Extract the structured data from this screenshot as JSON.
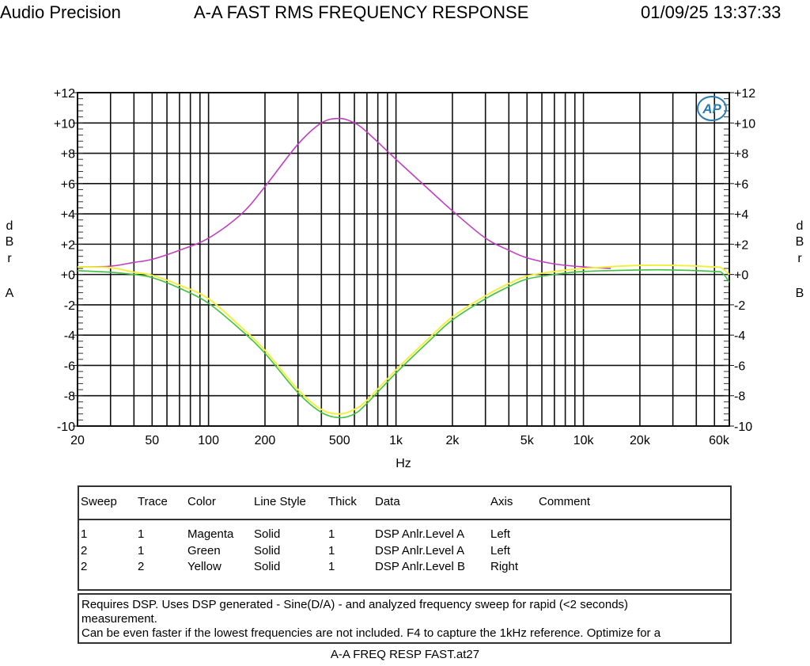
{
  "header": {
    "left": "Audio Precision",
    "title": "A-A FAST RMS FREQUENCY RESPONSE",
    "datetime": "01/09/25 13:37:33"
  },
  "chart_data": {
    "type": "line",
    "title": "A-A FAST RMS FREQUENCY RESPONSE",
    "xlabel": "Hz",
    "xscale": "log",
    "xlim": [
      20,
      60000
    ],
    "xticks": [
      {
        "v": 20,
        "label": "20"
      },
      {
        "v": 50,
        "label": "50"
      },
      {
        "v": 100,
        "label": "100"
      },
      {
        "v": 200,
        "label": "200"
      },
      {
        "v": 500,
        "label": "500"
      },
      {
        "v": 1000,
        "label": "1k"
      },
      {
        "v": 2000,
        "label": "2k"
      },
      {
        "v": 5000,
        "label": "5k"
      },
      {
        "v": 10000,
        "label": "10k"
      },
      {
        "v": 20000,
        "label": "20k"
      },
      {
        "v": 60000,
        "label": "60k"
      }
    ],
    "ylabel_left": [
      "d",
      "B",
      "r",
      "A"
    ],
    "ylabel_right": [
      "d",
      "B",
      "r",
      "B"
    ],
    "ylim": [
      -10,
      12
    ],
    "yticks": [
      {
        "v": 12,
        "label": "+12"
      },
      {
        "v": 10,
        "label": "+10"
      },
      {
        "v": 8,
        "label": "+8"
      },
      {
        "v": 6,
        "label": "+6"
      },
      {
        "v": 4,
        "label": "+4"
      },
      {
        "v": 2,
        "label": "+2"
      },
      {
        "v": 0,
        "label": "+0"
      },
      {
        "v": -2,
        "label": "-2"
      },
      {
        "v": -4,
        "label": "-4"
      },
      {
        "v": -6,
        "label": "-6"
      },
      {
        "v": -8,
        "label": "-8"
      },
      {
        "v": -10,
        "label": "-10"
      }
    ],
    "grid": true,
    "logo": "AP",
    "series": [
      {
        "name": "Sweep 1 Trace 1 Magenta",
        "color": "#c040c0",
        "axis": "left",
        "x": [
          20,
          30,
          40,
          50,
          70,
          100,
          150,
          200,
          300,
          400,
          500,
          600,
          700,
          1000,
          1500,
          2000,
          3000,
          4000,
          5000,
          7000,
          10000,
          14000
        ],
        "y": [
          0.5,
          0.55,
          0.8,
          1.0,
          1.6,
          2.4,
          4.0,
          5.8,
          8.6,
          10.0,
          10.3,
          10.0,
          9.4,
          7.6,
          5.6,
          4.2,
          2.4,
          1.6,
          1.1,
          0.7,
          0.5,
          0.4
        ]
      },
      {
        "name": "Sweep 2 Trace 1 Green",
        "color": "#40c040",
        "axis": "left",
        "x": [
          20,
          30,
          40,
          50,
          70,
          100,
          150,
          200,
          300,
          400,
          500,
          600,
          700,
          1000,
          1500,
          2000,
          3000,
          4000,
          5000,
          7000,
          10000,
          20000,
          30000,
          50000,
          55000,
          60000
        ],
        "y": [
          0.25,
          0.15,
          0,
          -0.2,
          -0.9,
          -1.9,
          -3.7,
          -5.2,
          -7.8,
          -9.1,
          -9.45,
          -9.2,
          -8.5,
          -6.5,
          -4.4,
          -3.0,
          -1.6,
          -0.8,
          -0.3,
          0,
          0.2,
          0.3,
          0.3,
          0.2,
          0.1,
          -0.5
        ]
      },
      {
        "name": "Sweep 2 Trace 2 Yellow",
        "color": "#f0f040",
        "axis": "right",
        "x": [
          20,
          30,
          40,
          50,
          70,
          100,
          150,
          200,
          300,
          400,
          500,
          600,
          700,
          1000,
          1500,
          2000,
          3000,
          4000,
          5000,
          7000,
          10000,
          20000,
          30000,
          50000,
          55000,
          60000
        ],
        "y": [
          0.5,
          0.45,
          0.15,
          -0.05,
          -0.7,
          -1.6,
          -3.5,
          -5.0,
          -7.6,
          -8.9,
          -9.2,
          -8.9,
          -8.3,
          -6.3,
          -4.2,
          -2.8,
          -1.4,
          -0.6,
          -0.1,
          0.2,
          0.4,
          0.6,
          0.6,
          0.5,
          0.4,
          0
        ]
      }
    ]
  },
  "legend": {
    "headers": [
      "Sweep",
      "Trace",
      "Color",
      "Line Style",
      "Thick",
      "Data",
      "Axis",
      "Comment"
    ],
    "rows": [
      [
        "1",
        "1",
        "Magenta",
        "Solid",
        "1",
        "DSP Anlr.Level A",
        "Left",
        ""
      ],
      [
        "2",
        "1",
        "Green",
        "Solid",
        "1",
        "DSP Anlr.Level A",
        "Left",
        ""
      ],
      [
        "2",
        "2",
        "Yellow",
        "Solid",
        "1",
        "DSP Anlr.Level B",
        "Right",
        ""
      ]
    ]
  },
  "notes": {
    "line1": "Requires DSP.  Uses DSP generated - Sine(D/A) - and analyzed frequency sweep for rapid (<2 seconds)",
    "line2": "measurement.",
    "line3": "Can be even faster if the lowest frequencies are not included. F4 to capture the 1kHz reference. Optimize for a"
  },
  "footer": {
    "filename": "A-A FREQ RESP FAST.at27"
  }
}
